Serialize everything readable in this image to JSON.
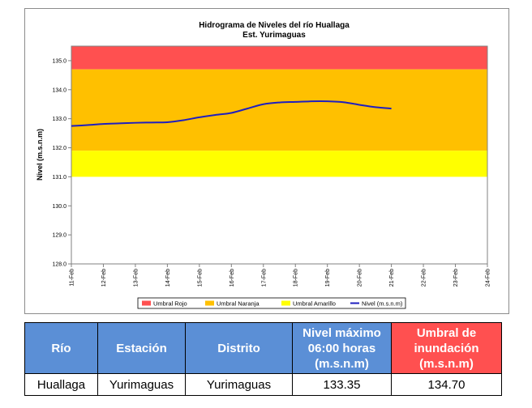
{
  "chart_data": {
    "type": "line",
    "title": "Hidrograma de Niveles del río Huallaga",
    "subtitle": "Est. Yurimaguas",
    "ylabel": "Nivel (m.s.n.m)",
    "xlabel": "",
    "ylim": [
      128.0,
      135.5
    ],
    "yticks": [
      "128.0",
      "129.0",
      "130.0",
      "131.0",
      "132.0",
      "133.0",
      "134.0",
      "135.0"
    ],
    "x_categories": [
      "11-Feb",
      "12-Feb",
      "13-Feb",
      "14-Feb",
      "15-Feb",
      "16-Feb",
      "17-Feb",
      "18-Feb",
      "19-Feb",
      "20-Feb",
      "21-Feb",
      "22-Feb",
      "23-Feb",
      "24-Feb"
    ],
    "bands": [
      {
        "name": "Umbral Rojo",
        "from": 134.7,
        "to": 135.5,
        "color": "#ff5050"
      },
      {
        "name": "Umbral Naranja",
        "from": 131.9,
        "to": 134.7,
        "color": "#ffc000"
      },
      {
        "name": "Umbral Amarillo",
        "from": 131.0,
        "to": 131.9,
        "color": "#ffff00"
      }
    ],
    "series": [
      {
        "name": "Nivel (m.s.n.m)",
        "color": "#1f1fbf",
        "x": [
          0,
          0.5,
          1,
          1.5,
          2,
          2.5,
          3,
          3.5,
          4,
          4.5,
          5,
          5.5,
          6,
          6.5,
          7,
          7.5,
          8,
          8.5,
          9,
          9.5,
          10
        ],
        "values": [
          132.75,
          132.78,
          132.82,
          132.84,
          132.86,
          132.87,
          132.88,
          132.95,
          133.05,
          133.13,
          133.2,
          133.35,
          133.5,
          133.56,
          133.58,
          133.6,
          133.6,
          133.57,
          133.48,
          133.4,
          133.35
        ]
      }
    ],
    "legend": {
      "position": "bottom",
      "entries": [
        "Umbral Rojo",
        "Umbral Naranja",
        "Umbral Amarillo",
        "Nivel (m.s.n.m)"
      ]
    },
    "grid": false
  },
  "table": {
    "headers": [
      "Río",
      "Estación",
      "Distrito",
      "Nivel máximo 06:00 horas (m.s.n.m)",
      "Umbral de inundación (m.s.n.m)"
    ],
    "row": [
      "Huallaga",
      "Yurimaguas",
      "Yurimaguas",
      "133.35",
      "134.70"
    ]
  }
}
